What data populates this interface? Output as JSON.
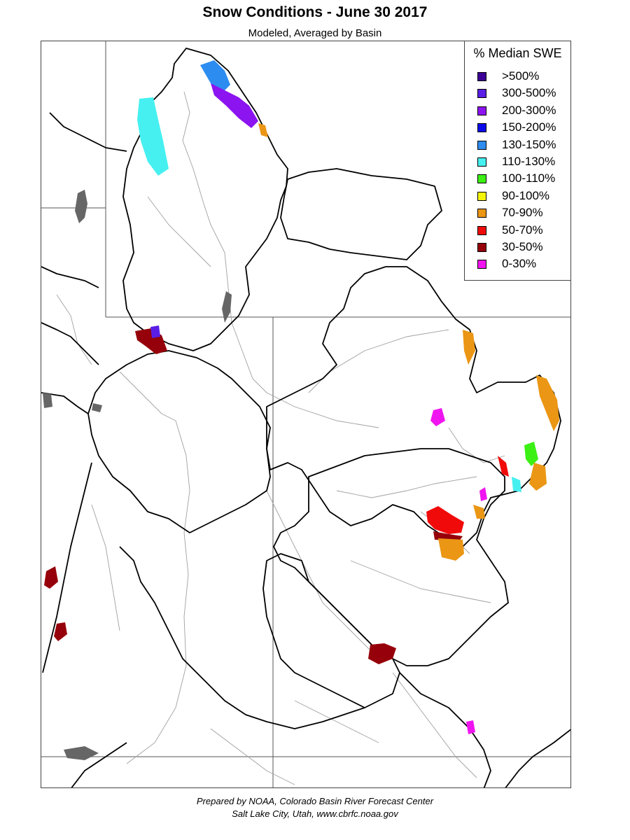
{
  "title": "Snow Conditions - June 30 2017",
  "subtitle": "Modeled, Averaged by Basin",
  "legend": {
    "title": "% Median SWE",
    "items": [
      {
        "label": ">500%",
        "color": "#3c0096"
      },
      {
        "label": "300-500%",
        "color": "#5a1ee6"
      },
      {
        "label": "200-300%",
        "color": "#8c14f0"
      },
      {
        "label": "150-200%",
        "color": "#0a0aeb"
      },
      {
        "label": "130-150%",
        "color": "#2d8cf0"
      },
      {
        "label": "110-130%",
        "color": "#46f0f0"
      },
      {
        "label": "100-110%",
        "color": "#3cf014"
      },
      {
        "label": "90-100%",
        "color": "#f5f50a"
      },
      {
        "label": "70-90%",
        "color": "#eb9614"
      },
      {
        "label": "50-70%",
        "color": "#f00a0a"
      },
      {
        "label": "30-50%",
        "color": "#96000a"
      },
      {
        "label": "0-30%",
        "color": "#f014f0"
      }
    ]
  },
  "footer": {
    "line1": "Prepared by NOAA, Colorado Basin River Forecast Center",
    "line2": "Salt Lake City, Utah, www.cbrfc.noaa.gov"
  },
  "map": {
    "basin_line_color": "#000000",
    "state_line_color": "#555555",
    "river_color": "#a0a0a0",
    "lake_color": "#666666"
  }
}
